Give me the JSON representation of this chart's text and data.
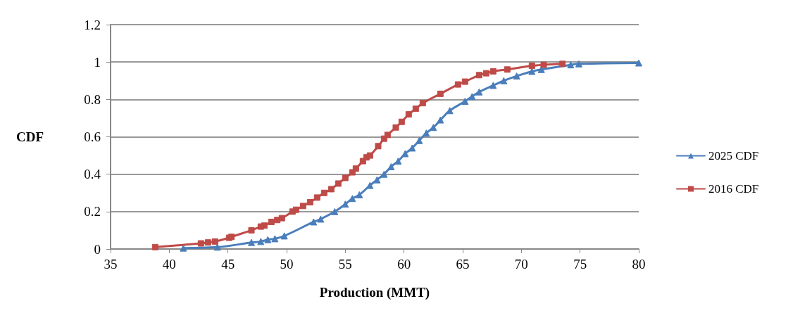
{
  "chart_data": {
    "type": "line",
    "xlabel": "Production (MMT)",
    "ylabel": "CDF",
    "xlim": [
      35,
      80
    ],
    "xticks": [
      35,
      40,
      45,
      50,
      55,
      60,
      65,
      70,
      75,
      80
    ],
    "ylim": [
      0,
      1.2
    ],
    "yticks": [
      0,
      0.2,
      0.4,
      0.6,
      0.8,
      1,
      1.2
    ],
    "grid": "y",
    "legend": "right",
    "series": [
      {
        "name": "2025 CDF",
        "color": "#4a7ebb",
        "marker": "triangle",
        "x": [
          41.2,
          44.1,
          47.0,
          47.8,
          48.4,
          49.0,
          49.8,
          52.3,
          52.9,
          54.1,
          55.0,
          55.6,
          56.2,
          57.1,
          57.7,
          58.3,
          58.9,
          59.5,
          60.1,
          60.7,
          61.3,
          61.9,
          62.5,
          63.1,
          63.9,
          65.2,
          65.8,
          66.4,
          67.6,
          68.5,
          69.6,
          70.9,
          71.7,
          74.2,
          74.9,
          80
        ],
        "values": [
          0.005,
          0.01,
          0.035,
          0.04,
          0.05,
          0.055,
          0.07,
          0.145,
          0.16,
          0.2,
          0.24,
          0.27,
          0.29,
          0.34,
          0.37,
          0.4,
          0.44,
          0.47,
          0.51,
          0.54,
          0.58,
          0.62,
          0.65,
          0.69,
          0.74,
          0.79,
          0.815,
          0.84,
          0.875,
          0.9,
          0.925,
          0.95,
          0.96,
          0.985,
          0.99,
          0.995
        ]
      },
      {
        "name": "2016 CDF",
        "color": "#be4b48",
        "marker": "square",
        "x": [
          38.8,
          42.7,
          43.3,
          43.9,
          45.1,
          45.3,
          47.0,
          47.8,
          48.1,
          48.7,
          49.2,
          49.6,
          50.5,
          50.8,
          51.4,
          52.0,
          52.6,
          53.2,
          53.8,
          54.4,
          55.0,
          55.6,
          55.9,
          56.5,
          56.8,
          57.1,
          57.8,
          58.3,
          58.6,
          59.3,
          59.8,
          60.4,
          61.0,
          61.6,
          63.1,
          64.6,
          65.2,
          66.4,
          67.0,
          67.6,
          68.8,
          70.9,
          71.9,
          73.5
        ],
        "values": [
          0.01,
          0.03,
          0.035,
          0.04,
          0.06,
          0.065,
          0.1,
          0.12,
          0.125,
          0.145,
          0.155,
          0.165,
          0.2,
          0.21,
          0.23,
          0.25,
          0.275,
          0.3,
          0.32,
          0.35,
          0.38,
          0.41,
          0.43,
          0.47,
          0.49,
          0.5,
          0.55,
          0.59,
          0.61,
          0.65,
          0.68,
          0.72,
          0.75,
          0.78,
          0.83,
          0.88,
          0.895,
          0.93,
          0.94,
          0.95,
          0.96,
          0.98,
          0.985,
          0.99
        ]
      }
    ]
  }
}
